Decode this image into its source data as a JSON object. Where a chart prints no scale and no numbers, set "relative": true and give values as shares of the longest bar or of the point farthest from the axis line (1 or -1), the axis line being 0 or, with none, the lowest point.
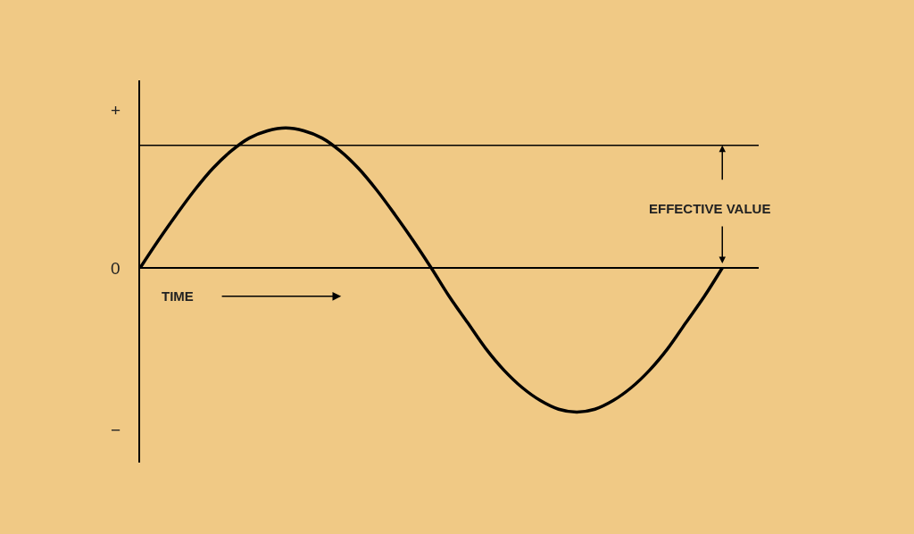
{
  "chart_data": {
    "type": "line",
    "relative": true,
    "color": "#000000",
    "categories": [
      null,
      null,
      null,
      null,
      null,
      null,
      null,
      null,
      null,
      null,
      null,
      null,
      null,
      null,
      null,
      null,
      null,
      null,
      null,
      null,
      null,
      null,
      null,
      null,
      null,
      null,
      null,
      null,
      null,
      null,
      null,
      null,
      null,
      null,
      null
    ],
    "values": [
      0,
      0.19,
      0.37,
      0.54,
      0.69,
      0.81,
      0.9,
      0.95,
      0.97,
      0.95,
      0.9,
      0.81,
      0.69,
      0.54,
      0.37,
      0.19,
      0,
      -0.2,
      -0.38,
      -0.56,
      -0.71,
      -0.83,
      -0.92,
      -0.98,
      -1,
      -0.98,
      -0.92,
      -0.83,
      -0.71,
      -0.56,
      -0.38,
      -0.2,
      0,
      null,
      null
    ],
    "ref_lines": [
      {
        "axis": "y",
        "value": 0.85,
        "color": "#000000"
      }
    ],
    "annotations": [
      "+",
      "0",
      "−",
      "TIME",
      "EFFECTIVE VALUE"
    ],
    "grid": false,
    "marker": "none",
    "line_style": "solid"
  }
}
